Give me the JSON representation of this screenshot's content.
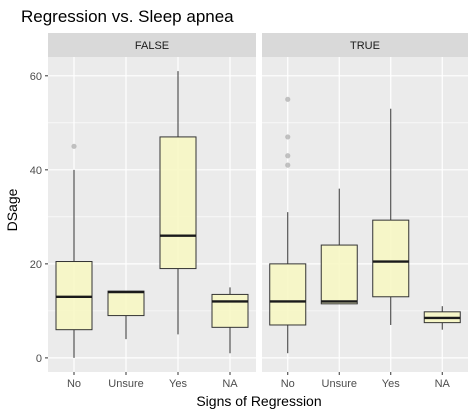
{
  "chart_data": {
    "type": "boxplot",
    "title": "Regression vs. Sleep apnea",
    "xlabel": "Signs of Regression",
    "ylabel": "DSage",
    "categories": [
      "No",
      "Unsure",
      "Yes",
      "NA"
    ],
    "yticks": [
      0,
      20,
      40,
      60
    ],
    "ylim": [
      -3,
      64
    ],
    "grid": true,
    "colors": {
      "panel_bg": "#ebebeb",
      "grid": "#ffffff",
      "strip_bg": "#d9d9d9",
      "box_fill": "#f7f7c4",
      "box_stroke": "#333333",
      "outlier": "#b3b3b3"
    },
    "facets": [
      {
        "label": "FALSE",
        "boxes": [
          {
            "category": "No",
            "whisker_low": 0,
            "q1": 6,
            "median": 13,
            "q3": 20.5,
            "whisker_high": 40,
            "outliers": [
              45
            ]
          },
          {
            "category": "Unsure",
            "whisker_low": 4,
            "q1": 9,
            "median": 14,
            "q3": 14.2,
            "whisker_high": 14.2,
            "outliers": []
          },
          {
            "category": "Yes",
            "whisker_low": 5,
            "q1": 19,
            "median": 26,
            "q3": 47,
            "whisker_high": 61,
            "outliers": []
          },
          {
            "category": "NA",
            "whisker_low": 1,
            "q1": 6.5,
            "median": 12,
            "q3": 13.5,
            "whisker_high": 15,
            "outliers": []
          }
        ]
      },
      {
        "label": "TRUE",
        "boxes": [
          {
            "category": "No",
            "whisker_low": 1,
            "q1": 7,
            "median": 12,
            "q3": 20,
            "whisker_high": 31,
            "outliers": [
              41,
              43,
              47,
              55
            ]
          },
          {
            "category": "Unsure",
            "whisker_low": 11.5,
            "q1": 11.5,
            "median": 12,
            "q3": 24,
            "whisker_high": 36,
            "outliers": []
          },
          {
            "category": "Yes",
            "whisker_low": 7,
            "q1": 13,
            "median": 20.5,
            "q3": 29.3,
            "whisker_high": 53,
            "outliers": []
          },
          {
            "category": "NA",
            "whisker_low": 6,
            "q1": 7.5,
            "median": 8.5,
            "q3": 9.8,
            "whisker_high": 11,
            "outliers": []
          }
        ]
      }
    ]
  }
}
